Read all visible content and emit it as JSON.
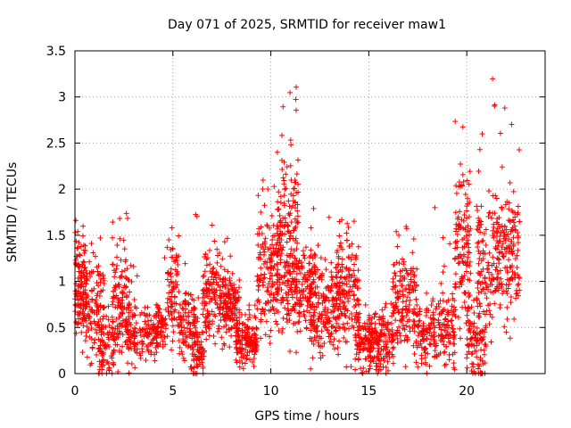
{
  "chart_data": {
    "type": "scatter",
    "title": "Day 071 of 2025, SRMTID for receiver maw1",
    "xlabel": "GPS time / hours",
    "ylabel": "SRMTID / TECUs",
    "xlim": [
      0,
      24
    ],
    "ylim": [
      0,
      3.5
    ],
    "x_ticks": [
      0,
      5,
      10,
      15,
      20
    ],
    "y_ticks": [
      0,
      0.5,
      1,
      1.5,
      2,
      2.5,
      3,
      3.5
    ],
    "x_tick_labels": [
      "0",
      "5",
      "10",
      "15",
      "20"
    ],
    "y_tick_labels": [
      "0",
      "0.5",
      "1",
      "1.5",
      "2",
      "2.5",
      "3",
      "3.5"
    ],
    "grid": true,
    "marker": "plus",
    "series": [
      {
        "name": "maw1",
        "color": "#ff0000",
        "clusters": [
          {
            "x": [
              0.0,
              0.6
            ],
            "y_center": 0.9,
            "y_spread": 0.35,
            "y_max": 1.75,
            "n": 140
          },
          {
            "x": [
              0.6,
              1.5
            ],
            "y_center": 0.7,
            "y_spread": 0.3,
            "y_max": 1.5,
            "n": 110
          },
          {
            "x": [
              1.2,
              2.0
            ],
            "y_center": 0.25,
            "y_spread": 0.2,
            "y_max": 0.9,
            "n": 70
          },
          {
            "x": [
              1.9,
              2.9
            ],
            "y_center": 0.8,
            "y_spread": 0.35,
            "y_max": 1.75,
            "n": 140
          },
          {
            "x": [
              2.6,
              3.2
            ],
            "y_center": 0.4,
            "y_spread": 0.2,
            "y_max": 1.2,
            "n": 60
          },
          {
            "x": [
              3.3,
              4.2
            ],
            "y_center": 0.4,
            "y_spread": 0.15,
            "y_max": 0.8,
            "n": 80
          },
          {
            "x": [
              4.1,
              4.7
            ],
            "y_center": 0.5,
            "y_spread": 0.15,
            "y_max": 1.45,
            "n": 60
          },
          {
            "x": [
              4.7,
              5.3
            ],
            "y_center": 0.9,
            "y_spread": 0.35,
            "y_max": 1.6,
            "n": 80
          },
          {
            "x": [
              5.3,
              6.3
            ],
            "y_center": 0.5,
            "y_spread": 0.2,
            "y_max": 1.8,
            "n": 110
          },
          {
            "x": [
              5.9,
              6.6
            ],
            "y_center": 0.2,
            "y_spread": 0.15,
            "y_max": 0.6,
            "n": 60
          },
          {
            "x": [
              6.5,
              8.0
            ],
            "y_center": 0.85,
            "y_spread": 0.3,
            "y_max": 1.65,
            "n": 190
          },
          {
            "x": [
              7.6,
              8.4
            ],
            "y_center": 0.7,
            "y_spread": 0.2,
            "y_max": 1.2,
            "n": 90
          },
          {
            "x": [
              8.2,
              9.3
            ],
            "y_center": 0.35,
            "y_spread": 0.15,
            "y_max": 0.75,
            "n": 150
          },
          {
            "x": [
              9.3,
              10.4
            ],
            "y_center": 1.1,
            "y_spread": 0.4,
            "y_max": 2.1,
            "n": 150
          },
          {
            "x": [
              10.3,
              11.4
            ],
            "y_center": 1.5,
            "y_spread": 0.6,
            "y_max": 3.15,
            "n": 180
          },
          {
            "x": [
              10.8,
              12.3
            ],
            "y_center": 0.9,
            "y_spread": 0.35,
            "y_max": 1.6,
            "n": 170
          },
          {
            "x": [
              12.0,
              13.5
            ],
            "y_center": 0.7,
            "y_spread": 0.3,
            "y_max": 1.85,
            "n": 180
          },
          {
            "x": [
              13.3,
              14.5
            ],
            "y_center": 0.9,
            "y_spread": 0.4,
            "y_max": 1.95,
            "n": 150
          },
          {
            "x": [
              14.3,
              15.2
            ],
            "y_center": 0.35,
            "y_spread": 0.2,
            "y_max": 1.0,
            "n": 100
          },
          {
            "x": [
              15.0,
              16.3
            ],
            "y_center": 0.35,
            "y_spread": 0.2,
            "y_max": 0.85,
            "n": 160
          },
          {
            "x": [
              16.2,
              17.5
            ],
            "y_center": 0.8,
            "y_spread": 0.35,
            "y_max": 1.75,
            "n": 150
          },
          {
            "x": [
              17.4,
              18.5
            ],
            "y_center": 0.45,
            "y_spread": 0.25,
            "y_max": 2.0,
            "n": 110
          },
          {
            "x": [
              18.5,
              19.4
            ],
            "y_center": 0.5,
            "y_spread": 0.25,
            "y_max": 1.5,
            "n": 100
          },
          {
            "x": [
              19.4,
              20.2
            ],
            "y_center": 1.3,
            "y_spread": 0.5,
            "y_max": 2.9,
            "n": 120
          },
          {
            "x": [
              20.0,
              21.0
            ],
            "y_center": 0.3,
            "y_spread": 0.25,
            "y_max": 1.0,
            "n": 100
          },
          {
            "x": [
              20.5,
              21.6
            ],
            "y_center": 1.2,
            "y_spread": 0.5,
            "y_max": 3.25,
            "n": 130
          },
          {
            "x": [
              21.5,
              22.7
            ],
            "y_center": 1.3,
            "y_spread": 0.45,
            "y_max": 2.9,
            "n": 160
          }
        ]
      }
    ]
  }
}
